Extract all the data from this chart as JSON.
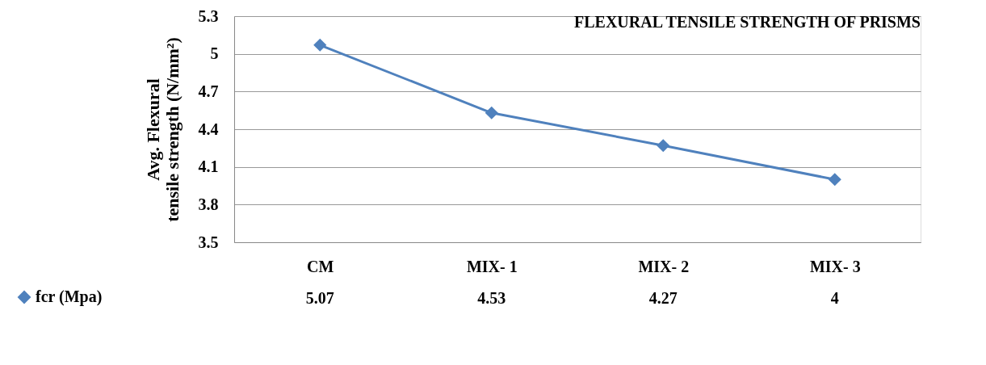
{
  "chart_data": {
    "type": "line",
    "title": "FLEXURAL TENSILE STRENGTH OF PRISMS",
    "ylabel": "Avg. Flexural tensile strength (N/mm²)",
    "categories": [
      "CM",
      "MIX- 1",
      "MIX- 2",
      "MIX- 3"
    ],
    "series": [
      {
        "name": "fcr (Mpa)",
        "color": "#4f81bd",
        "values": [
          5.07,
          4.53,
          4.27,
          4
        ]
      }
    ],
    "ylim": [
      3.5,
      5.3
    ],
    "yticks": [
      3.5,
      3.8,
      4.1,
      4.4,
      4.7,
      5,
      5.3
    ],
    "grid": "y",
    "marker": "diamond",
    "data_labels": true,
    "legend": "bottom left"
  }
}
